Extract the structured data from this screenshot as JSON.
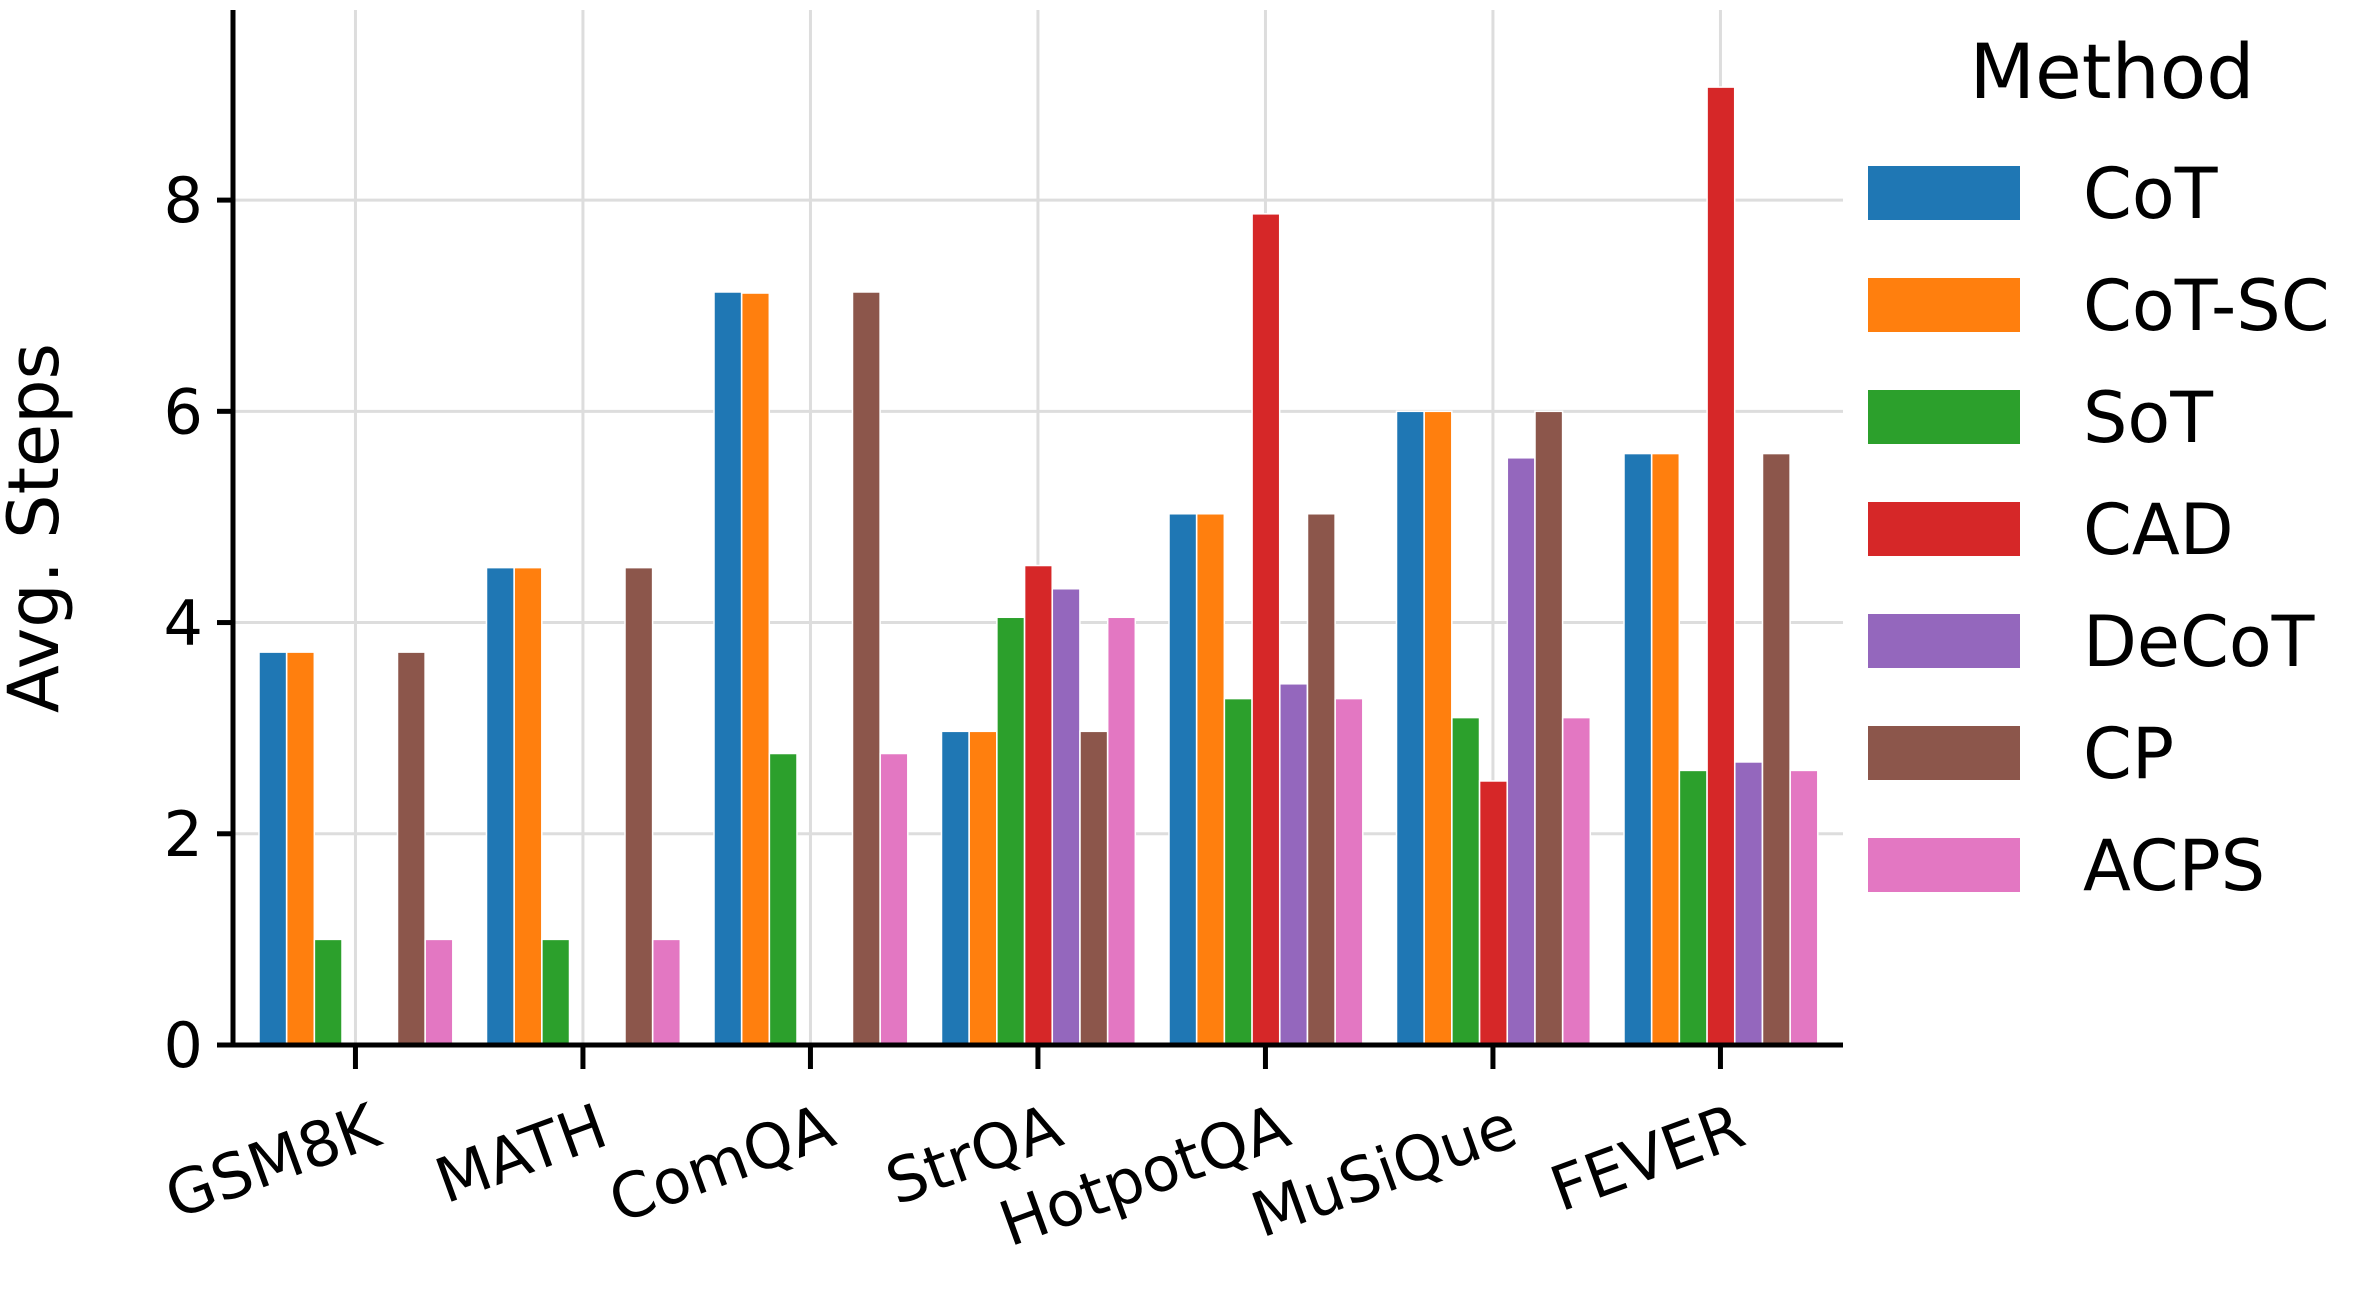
{
  "chart_data": {
    "type": "bar",
    "ylabel": "Avg. Steps",
    "xlabel": "",
    "ylim": [
      0,
      9.8
    ],
    "yticks": [
      0,
      2,
      4,
      6,
      8
    ],
    "grid": true,
    "legend": {
      "title": "Method",
      "placement": "right"
    },
    "categories": [
      "GSM8K",
      "MATH",
      "ComQA",
      "StrQA",
      "HotpotQA",
      "MuSiQue",
      "FEVER"
    ],
    "series": [
      {
        "name": "CoT",
        "color": "#1f77b4",
        "values": [
          3.72,
          4.52,
          7.13,
          2.97,
          5.03,
          6.0,
          5.6
        ]
      },
      {
        "name": "CoT-SC",
        "color": "#ff7f0e",
        "values": [
          3.72,
          4.52,
          7.12,
          2.97,
          5.03,
          6.0,
          5.6
        ]
      },
      {
        "name": "SoT",
        "color": "#2ca02c",
        "values": [
          1.0,
          1.0,
          2.76,
          4.05,
          3.28,
          3.1,
          2.6
        ]
      },
      {
        "name": "CAD",
        "color": "#d62728",
        "values": [
          0,
          0,
          0,
          4.54,
          7.87,
          2.5,
          9.07
        ]
      },
      {
        "name": "DeCoT",
        "color": "#9467bd",
        "values": [
          0,
          0,
          0,
          4.32,
          3.42,
          5.56,
          2.68
        ]
      },
      {
        "name": "CP",
        "color": "#8c564b",
        "values": [
          3.72,
          4.52,
          7.13,
          2.97,
          5.03,
          6.0,
          5.6
        ]
      },
      {
        "name": "ACPS",
        "color": "#e377c2",
        "values": [
          1.0,
          1.0,
          2.76,
          4.05,
          3.28,
          3.1,
          2.6
        ]
      }
    ]
  }
}
